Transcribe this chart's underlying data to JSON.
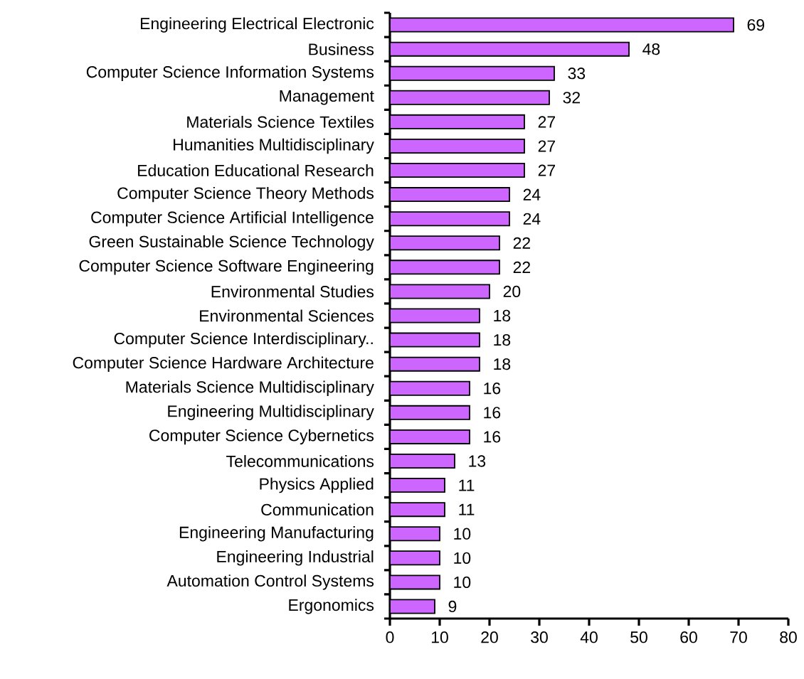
{
  "chart_data": {
    "type": "bar",
    "orientation": "horizontal",
    "categories": [
      "Engineering Electrical Electronic",
      "Business",
      "Computer Science Information Systems",
      "Management",
      "Materials Science Textiles",
      "Humanities Multidisciplinary",
      "Education Educational Research",
      "Computer Science Theory Methods",
      "Computer Science Artificial Intelligence",
      "Green Sustainable Science Technology",
      "Computer Science Software Engineering",
      "Environmental Studies",
      "Environmental Sciences",
      "Computer Science Interdisciplinary..",
      "Computer Science Hardware Architecture",
      "Materials Science Multidisciplinary",
      "Engineering Multidisciplinary",
      "Computer Science Cybernetics",
      "Telecommunications",
      "Physics Applied",
      "Communication",
      "Engineering Manufacturing",
      "Engineering Industrial",
      "Automation Control Systems",
      "Ergonomics"
    ],
    "values": [
      69,
      48,
      33,
      32,
      27,
      27,
      27,
      24,
      24,
      22,
      22,
      20,
      18,
      18,
      18,
      16,
      16,
      16,
      13,
      11,
      11,
      10,
      10,
      10,
      9
    ],
    "color": "#cc66ff",
    "data_labels": true,
    "xlim": [
      0,
      80
    ],
    "xticks": [
      0,
      10,
      20,
      30,
      40,
      50,
      60,
      70,
      80
    ]
  }
}
